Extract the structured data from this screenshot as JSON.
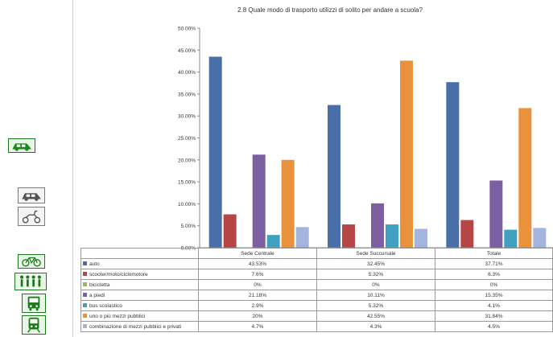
{
  "chart_data": {
    "type": "bar",
    "title": "2.8 Quale modo di trasporto utilizzi di solito per andare a scuola?",
    "xlabel": "",
    "ylabel": "",
    "ylim": [
      0,
      50
    ],
    "y_ticks": [
      "0.00%",
      "5.00%",
      "10.00%",
      "15.00%",
      "20.00%",
      "25.00%",
      "30.00%",
      "35.00%",
      "40.00%",
      "45.00%",
      "50.00%"
    ],
    "grid": false,
    "legend": "table-below",
    "categories": [
      "Sede Centrale",
      "Sede Succursale",
      "Totale"
    ],
    "series": [
      {
        "name": "auto",
        "color": "#4a6fa8",
        "values": [
          43.5,
          32.5,
          37.7
        ],
        "labels": [
          "43.53%",
          "32.45%",
          "37.71%"
        ]
      },
      {
        "name": "scooter/moto/ciclomotore",
        "color": "#b64646",
        "values": [
          7.6,
          5.3,
          6.3
        ],
        "labels": [
          "7.6%",
          "5.32%",
          "6.3%"
        ]
      },
      {
        "name": "bicicletta",
        "color": "#98b954",
        "values": [
          0,
          0,
          0
        ],
        "labels": [
          "0%",
          "0%",
          "0%"
        ]
      },
      {
        "name": "a piedi",
        "color": "#7c5fa0",
        "values": [
          21.2,
          10.1,
          15.3
        ],
        "labels": [
          "21.18%",
          "10.11%",
          "15.35%"
        ]
      },
      {
        "name": "bus scolastico",
        "color": "#3fa0c0",
        "values": [
          2.9,
          5.3,
          4.1
        ],
        "labels": [
          "2.9%",
          "5.32%",
          "4.1%"
        ]
      },
      {
        "name": "uno o più mezzi pubblici",
        "color": "#e8923c",
        "values": [
          20,
          42.6,
          31.8
        ],
        "labels": [
          "20%",
          "42.55%",
          "31.84%"
        ]
      },
      {
        "name": "combinazione di mezzi pubblici e privati",
        "color": "#a3b5dc",
        "values": [
          4.7,
          4.3,
          4.5
        ],
        "labels": [
          "4.7%",
          "4.3%",
          "4.5%"
        ]
      }
    ]
  }
}
